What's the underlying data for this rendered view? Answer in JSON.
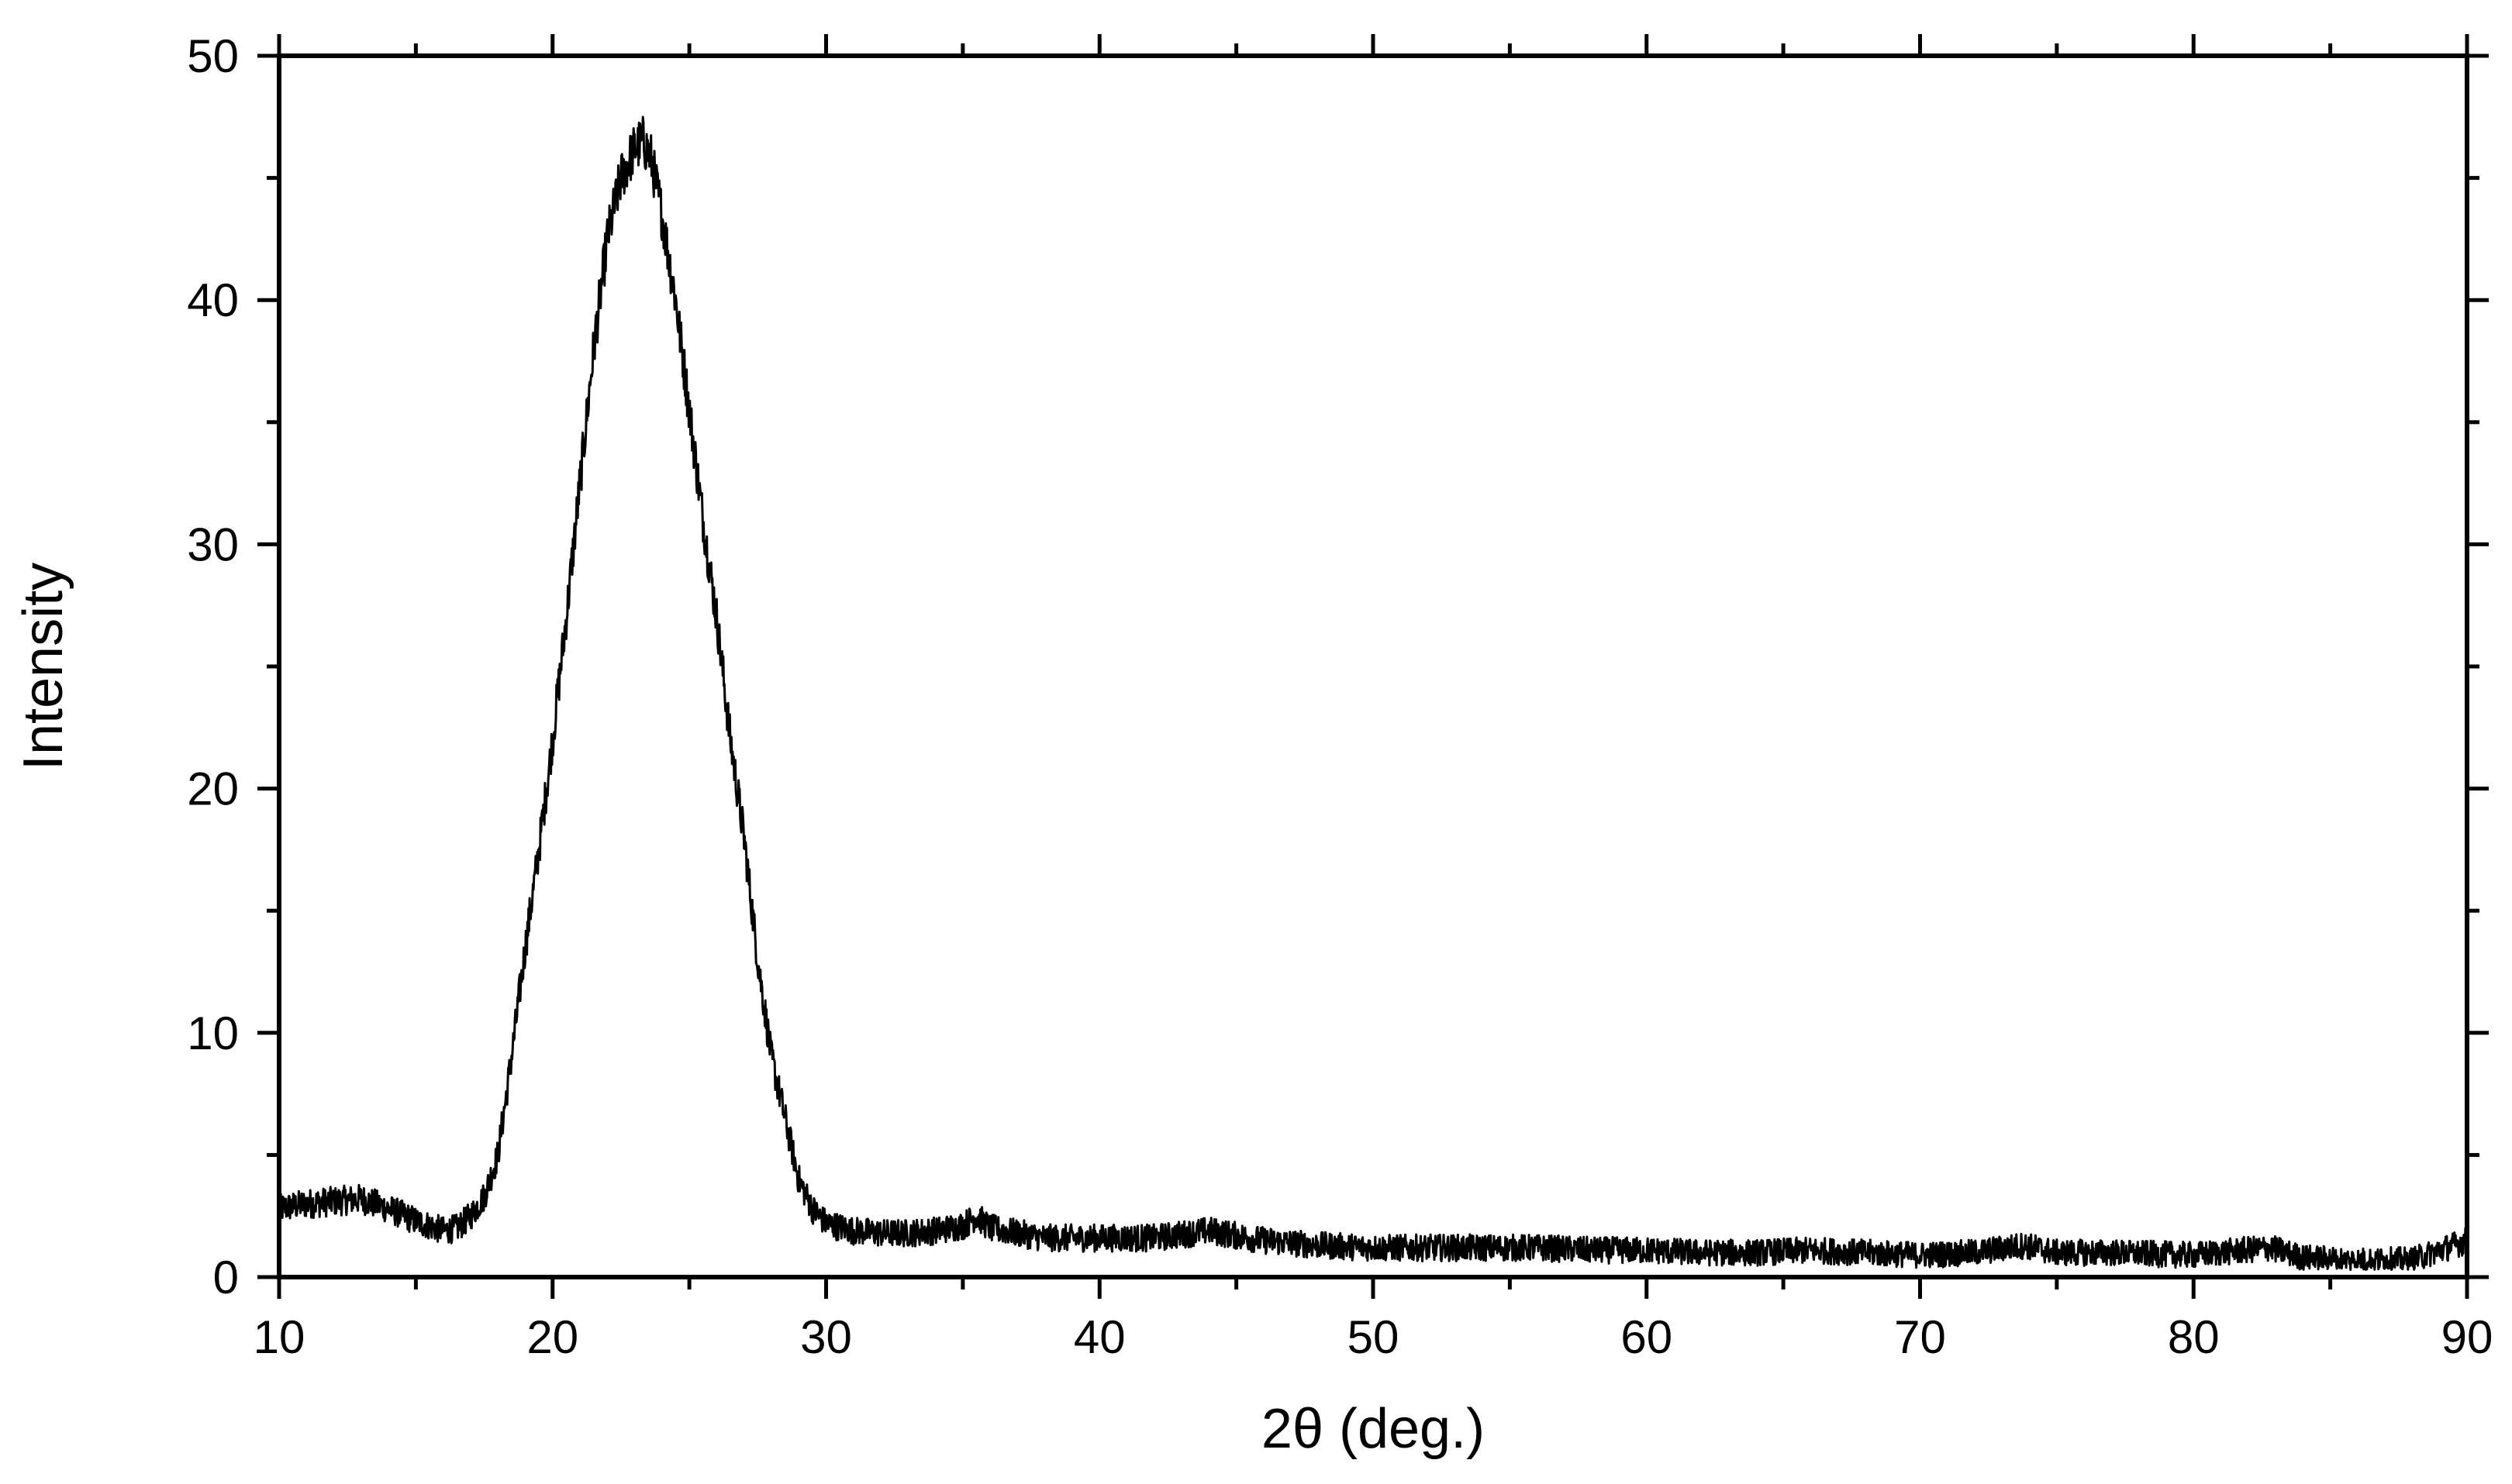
{
  "chart_data": {
    "type": "line",
    "title": "",
    "xlabel": "2θ (deg.)",
    "ylabel": "Intensity",
    "xlim": [
      10,
      90
    ],
    "ylim": [
      0,
      50
    ],
    "x_ticks": [
      10,
      20,
      30,
      40,
      50,
      60,
      70,
      80,
      90
    ],
    "x_tick_labels": [
      "10",
      "20",
      "30",
      "40",
      "50",
      "60",
      "70",
      "80",
      "90"
    ],
    "y_ticks": [
      0,
      10,
      20,
      30,
      40,
      50
    ],
    "y_tick_labels": [
      "0",
      "10",
      "20",
      "30",
      "40",
      "50"
    ],
    "x_minor_ticks": [
      15,
      25,
      35,
      45,
      55,
      65,
      75,
      85
    ],
    "y_minor_ticks": [
      5,
      15,
      25,
      35,
      45
    ],
    "grid": false,
    "legend": "none",
    "line_color": "#000000",
    "series": [
      {
        "x": [
          10,
          11,
          12,
          13,
          14,
          15,
          16,
          16.5,
          17,
          17.5,
          18,
          18.5,
          19,
          19.5,
          20,
          20.5,
          21,
          21.5,
          22,
          22.5,
          23,
          23.3,
          23.6,
          24,
          24.5,
          25,
          25.5,
          26,
          26.5,
          27,
          27.5,
          28,
          28.5,
          29,
          29.5,
          30,
          31,
          32,
          33,
          34,
          35,
          35.5,
          36,
          37,
          38,
          40,
          42,
          44,
          45,
          46,
          48,
          50,
          52,
          54,
          56,
          58,
          60,
          62,
          64,
          66,
          68,
          70,
          72,
          73.8,
          75,
          77,
          80,
          82.8,
          84,
          86,
          88,
          90
        ],
        "y": [
          2.8,
          3.0,
          3.1,
          3.2,
          2.8,
          2.3,
          1.9,
          2.0,
          2.5,
          3.3,
          5.0,
          9.0,
          13.5,
          17.5,
          22.0,
          27.0,
          32.5,
          38.0,
          42.5,
          45.0,
          46.2,
          46.5,
          45.8,
          43.5,
          40.0,
          35.5,
          31.0,
          27.0,
          22.0,
          18.0,
          13.0,
          9.0,
          6.5,
          4.0,
          2.8,
          2.2,
          1.9,
          1.8,
          1.8,
          1.9,
          2.1,
          2.5,
          2.0,
          1.8,
          1.6,
          1.6,
          1.6,
          1.9,
          1.7,
          1.5,
          1.3,
          1.2,
          1.2,
          1.2,
          1.2,
          1.1,
          1.1,
          1.0,
          1.0,
          1.1,
          1.0,
          0.9,
          1.0,
          1.3,
          1.0,
          1.0,
          0.9,
          1.2,
          0.8,
          0.7,
          0.7,
          1.5
        ]
      }
    ]
  }
}
